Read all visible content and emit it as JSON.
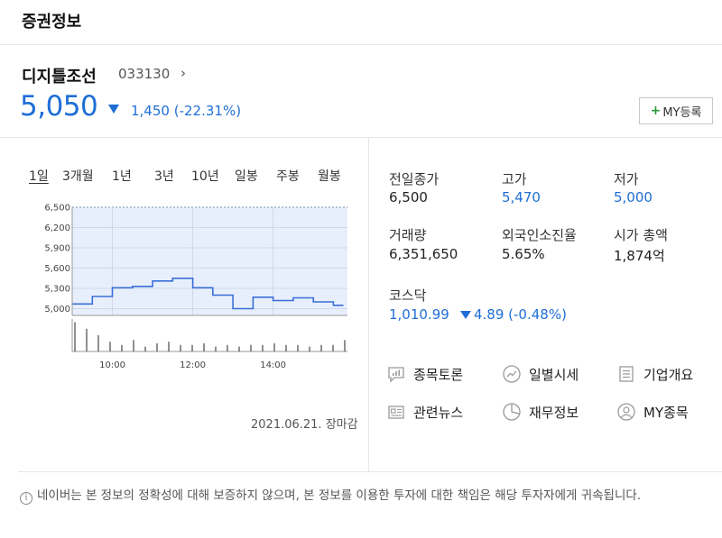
{
  "header": {
    "title": "증권정보"
  },
  "stock": {
    "name": "디지틀조선",
    "code": "033130",
    "code_arrow": "›",
    "price": "5,050",
    "change_amount": "1,450",
    "change_percent": "(-22.31%)"
  },
  "my_register": {
    "plus": "+",
    "label": "MY등록"
  },
  "tabs": [
    {
      "label": "1일",
      "active": true
    },
    {
      "label": "3개월"
    },
    {
      "label": "1년"
    },
    {
      "label": "3년"
    },
    {
      "label": "10년"
    },
    {
      "label": "일봉"
    },
    {
      "label": "주봉"
    },
    {
      "label": "월봉"
    }
  ],
  "chart_data": {
    "type": "line",
    "y_ticks": [
      "6,500",
      "6,200",
      "5,900",
      "5,600",
      "5,300",
      "5,000"
    ],
    "x_ticks": [
      "10:00",
      "12:00",
      "14:00"
    ],
    "ylim": [
      4900,
      6500
    ],
    "x_hours": [
      9.0,
      9.5,
      9.5,
      10.0,
      10.0,
      10.5,
      10.5,
      11.0,
      11.0,
      11.5,
      11.5,
      12.0,
      12.0,
      12.5,
      12.5,
      13.0,
      13.0,
      13.5,
      13.5,
      14.0,
      14.0,
      14.5,
      14.5,
      15.0,
      15.0,
      15.5,
      15.5,
      15.75
    ],
    "y": [
      5070,
      5070,
      5180,
      5180,
      5310,
      5310,
      5330,
      5330,
      5410,
      5410,
      5450,
      5450,
      5310,
      5310,
      5200,
      5200,
      5000,
      5000,
      5170,
      5170,
      5120,
      5120,
      5160,
      5160,
      5100,
      5100,
      5050,
      5050
    ],
    "volume_bars": [
      0.9,
      0.7,
      0.5,
      0.3,
      0.2,
      0.35,
      0.15,
      0.25,
      0.3,
      0.2,
      0.2,
      0.25,
      0.15,
      0.2,
      0.15,
      0.2,
      0.2,
      0.25,
      0.2,
      0.2,
      0.15,
      0.2,
      0.2,
      0.35
    ],
    "xlim_hours": [
      9.0,
      15.85
    ],
    "colors": {
      "line": "#3a6fd8",
      "fill": "#e8effc",
      "grid": "#cfd8e8",
      "top_line": "#7a8fb4"
    }
  },
  "chart_date": "2021.06.21. 장마감",
  "info": {
    "prev_close": {
      "label": "전일종가",
      "value": "6,500"
    },
    "high": {
      "label": "고가",
      "value": "5,470"
    },
    "low": {
      "label": "저가",
      "value": "5,000"
    },
    "volume": {
      "label": "거래량",
      "value": "6,351,650"
    },
    "foreign_ratio": {
      "label": "외국인소진율",
      "value": "5.65%"
    },
    "market_cap": {
      "label": "시가 총액",
      "value": "1,874",
      "unit": "억"
    },
    "kosdaq": {
      "label": "코스닥",
      "value": "1,010.99",
      "change": "4.89 (-0.48%)"
    }
  },
  "links": {
    "discussion": "종목토론",
    "daily_price": "일별시세",
    "company_info": "기업개요",
    "news": "관련뉴스",
    "financials": "재무정보",
    "my_stock": "MY종목"
  },
  "notice": {
    "icon": "i",
    "text": "네이버는 본 정보의 정확성에 대해 보증하지 않으며, 본 정보를 이용한 투자에 대한 책임은 해당 투자자에게 귀속됩니다."
  }
}
